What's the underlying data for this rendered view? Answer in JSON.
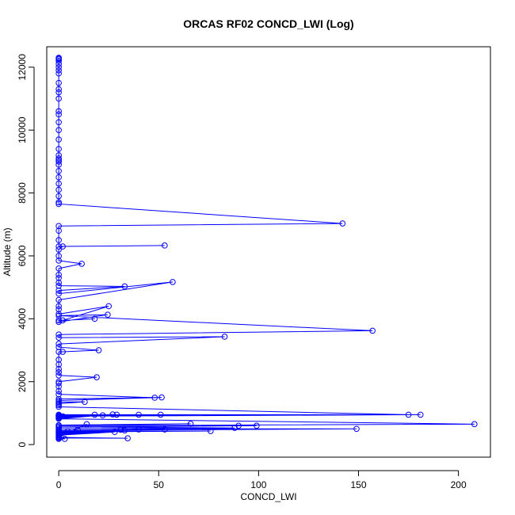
{
  "chart_data": {
    "type": "line",
    "title": "ORCAS RF02 CONCD_LWI (Log)",
    "xlabel": "CONCD_LWI",
    "ylabel": "Altitude (m)",
    "xlim": [
      -6,
      216
    ],
    "ylim": [
      -400,
      12650
    ],
    "xticks": [
      0,
      50,
      100,
      150,
      200
    ],
    "yticks": [
      0,
      2000,
      4000,
      6000,
      8000,
      10000,
      12000
    ],
    "grid": false,
    "legend": "none",
    "color": "#0000ff",
    "series": [
      {
        "points": [
          [
            0,
            12300
          ],
          [
            0,
            12280
          ],
          [
            0,
            12250
          ],
          [
            0,
            12200
          ],
          [
            0,
            12100
          ],
          [
            0,
            12000
          ],
          [
            0,
            11900
          ],
          [
            0,
            11800
          ],
          [
            0,
            11500
          ],
          [
            0,
            11300
          ],
          [
            0,
            11200
          ],
          [
            0,
            11000
          ],
          [
            0,
            10600
          ],
          [
            0,
            10500
          ],
          [
            0,
            10250
          ],
          [
            0,
            10000
          ],
          [
            0,
            9700
          ],
          [
            0,
            9400
          ],
          [
            0,
            9200
          ],
          [
            0,
            9100
          ],
          [
            0,
            9050
          ],
          [
            0,
            9000
          ],
          [
            0,
            8900
          ],
          [
            0,
            8700
          ],
          [
            0,
            8500
          ],
          [
            0,
            8300
          ],
          [
            0,
            8100
          ],
          [
            0,
            7900
          ],
          [
            0,
            7700
          ],
          [
            0,
            7650
          ],
          [
            142,
            7030
          ],
          [
            0,
            6950
          ],
          [
            0,
            6800
          ],
          [
            0,
            6500
          ],
          [
            0,
            6300
          ],
          [
            53,
            6330
          ],
          [
            2,
            6300
          ],
          [
            0,
            6200
          ],
          [
            0,
            6000
          ],
          [
            0,
            5850
          ],
          [
            11.5,
            5750
          ],
          [
            0,
            5600
          ],
          [
            0,
            5400
          ],
          [
            0,
            5300
          ],
          [
            0,
            5150
          ],
          [
            0,
            5050
          ],
          [
            33,
            5030
          ],
          [
            0,
            4900
          ],
          [
            0,
            4800
          ],
          [
            57,
            5170
          ],
          [
            0,
            4600
          ],
          [
            0,
            4400
          ],
          [
            0,
            4300
          ],
          [
            0,
            4150
          ],
          [
            25,
            4400
          ],
          [
            2,
            3950
          ],
          [
            18,
            4000
          ],
          [
            0,
            3950
          ],
          [
            0,
            3900
          ],
          [
            24.5,
            4130
          ],
          [
            0,
            4100
          ],
          [
            157,
            3620
          ],
          [
            0,
            3500
          ],
          [
            0,
            3400
          ],
          [
            83,
            3430
          ],
          [
            0,
            3200
          ],
          [
            0,
            3100
          ],
          [
            20,
            3000
          ],
          [
            2,
            2950
          ],
          [
            0,
            2950
          ],
          [
            0,
            2700
          ],
          [
            0,
            2550
          ],
          [
            0,
            2400
          ],
          [
            0,
            2300
          ],
          [
            0,
            2200
          ],
          [
            19,
            2140
          ],
          [
            0,
            2000
          ],
          [
            0,
            1950
          ],
          [
            0,
            1850
          ],
          [
            0,
            1700
          ],
          [
            0,
            1600
          ],
          [
            48,
            1490
          ],
          [
            0,
            1450
          ],
          [
            51.5,
            1500
          ],
          [
            0,
            1400
          ],
          [
            0,
            1350
          ],
          [
            13,
            1360
          ],
          [
            0,
            1300
          ],
          [
            0,
            1250
          ],
          [
            0,
            1200
          ],
          [
            175,
            950
          ],
          [
            0,
            950
          ],
          [
            0,
            930
          ],
          [
            181,
            950
          ],
          [
            0,
            900
          ],
          [
            0,
            850
          ],
          [
            18,
            950
          ],
          [
            0,
            940
          ],
          [
            29,
            950
          ],
          [
            0,
            900
          ],
          [
            40,
            950
          ],
          [
            2,
            900
          ],
          [
            51,
            950
          ],
          [
            0,
            900
          ],
          [
            0,
            880
          ],
          [
            22,
            930
          ],
          [
            0,
            850
          ],
          [
            27,
            960
          ],
          [
            0,
            820
          ],
          [
            208,
            650
          ],
          [
            0,
            600
          ],
          [
            66,
            660
          ],
          [
            0,
            620
          ],
          [
            90,
            600
          ],
          [
            0,
            550
          ],
          [
            99,
            600
          ],
          [
            0,
            560
          ],
          [
            88,
            530
          ],
          [
            0,
            500
          ],
          [
            149,
            500
          ],
          [
            0,
            450
          ],
          [
            53,
            480
          ],
          [
            0,
            430
          ],
          [
            76,
            430
          ],
          [
            0,
            400
          ],
          [
            40,
            480
          ],
          [
            0,
            380
          ],
          [
            31,
            470
          ],
          [
            0,
            350
          ],
          [
            33,
            450
          ],
          [
            0,
            320
          ],
          [
            28,
            400
          ],
          [
            0,
            300
          ],
          [
            9.5,
            470
          ],
          [
            0,
            280
          ],
          [
            4.5,
            420
          ],
          [
            0,
            250
          ],
          [
            14,
            650
          ],
          [
            0,
            230
          ],
          [
            34.5,
            200
          ],
          [
            0,
            210
          ],
          [
            3,
            180
          ],
          [
            0,
            180
          ]
        ]
      }
    ]
  }
}
